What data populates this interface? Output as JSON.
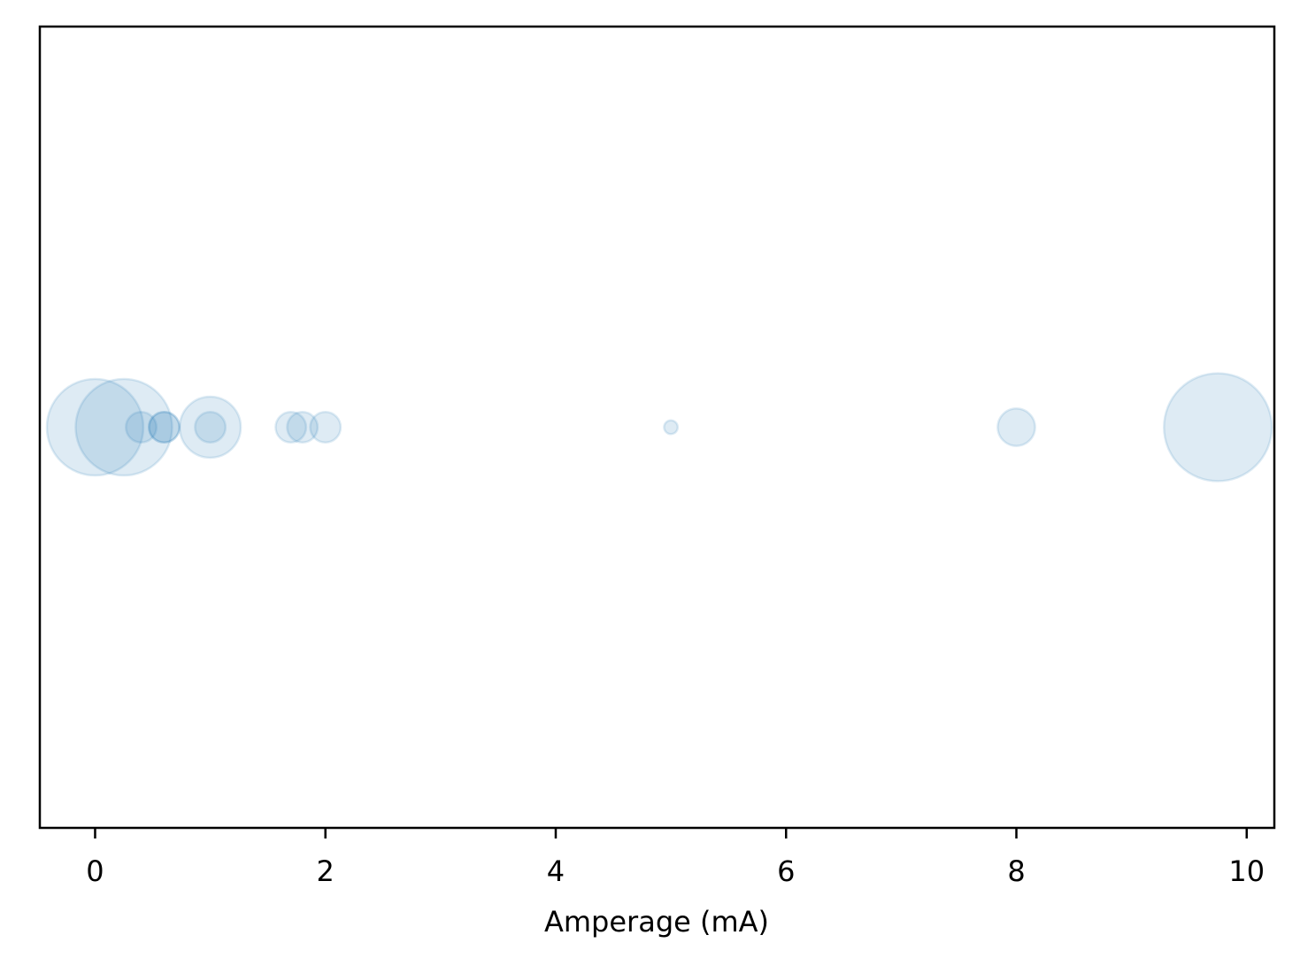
{
  "chart_data": {
    "type": "scatter",
    "title": "",
    "xlabel": "Amperage (mA)",
    "ylabel": "",
    "xlim": [
      -0.48,
      10.24
    ],
    "ylim": [
      -0.055,
      0.055
    ],
    "xticks": [
      0,
      2,
      4,
      6,
      8,
      10
    ],
    "xtick_labels": [
      "0",
      "2",
      "4",
      "6",
      "8",
      "10"
    ],
    "yticks": [],
    "grid": false,
    "legend": "none",
    "marker_color": "#1f77b4",
    "marker_alpha": 0.15,
    "points": [
      {
        "x": 0.0,
        "y": 0,
        "size": 100
      },
      {
        "x": 0.25,
        "y": 0,
        "size": 100
      },
      {
        "x": 0.4,
        "y": 0,
        "size": 10
      },
      {
        "x": 0.6,
        "y": 0,
        "size": 10
      },
      {
        "x": 0.6,
        "y": 0,
        "size": 10
      },
      {
        "x": 1.0,
        "y": 0,
        "size": 40
      },
      {
        "x": 1.0,
        "y": 0,
        "size": 10
      },
      {
        "x": 1.7,
        "y": 0,
        "size": 10
      },
      {
        "x": 1.8,
        "y": 0,
        "size": 10
      },
      {
        "x": 2.0,
        "y": 0,
        "size": 10
      },
      {
        "x": 5.0,
        "y": 0,
        "size": 2
      },
      {
        "x": 8.0,
        "y": 0,
        "size": 15
      },
      {
        "x": 9.75,
        "y": 0,
        "size": 125
      }
    ]
  }
}
